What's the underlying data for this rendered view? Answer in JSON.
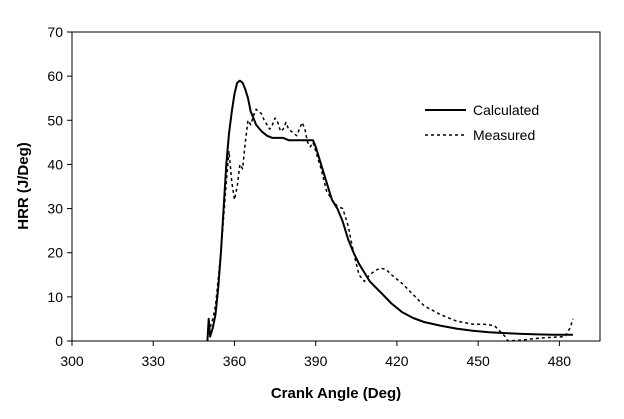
{
  "chart_data": {
    "type": "line",
    "title": "",
    "xlabel": "Crank Angle (Deg)",
    "ylabel": "HRR (J/Deg)",
    "xlim": [
      300,
      495
    ],
    "ylim": [
      0,
      70
    ],
    "x_ticks": [
      "300",
      "330",
      "360",
      "390",
      "420",
      "450",
      "480"
    ],
    "y_ticks": [
      "0",
      "10",
      "20",
      "30",
      "40",
      "50",
      "60",
      "70"
    ],
    "grid": false,
    "legend_position": "top-right",
    "series": [
      {
        "name": "Calculated",
        "style": "solid",
        "color": "#000000",
        "x": [
          350,
          350.5,
          351,
          352,
          353,
          354,
          355,
          356,
          357,
          358,
          359,
          360,
          361,
          362,
          363,
          364,
          365,
          366,
          368,
          370,
          372,
          374,
          376,
          378,
          380,
          382,
          384,
          386,
          388,
          389,
          390,
          392,
          394,
          396,
          398,
          400,
          402,
          404,
          406,
          408,
          410,
          414,
          418,
          422,
          426,
          430,
          436,
          442,
          448,
          454,
          460,
          466,
          472,
          478,
          484,
          485
        ],
        "y": [
          0,
          5,
          1,
          3,
          6,
          12,
          20,
          30,
          40,
          47,
          52,
          56,
          58.5,
          59,
          58.5,
          57,
          55,
          52,
          49,
          47.5,
          46.5,
          46,
          46,
          46,
          45.5,
          45.5,
          45.5,
          45.5,
          45.5,
          45.5,
          44,
          40,
          36,
          32,
          30,
          27,
          23,
          20,
          17.5,
          15.5,
          13.5,
          11,
          8.5,
          6.5,
          5.2,
          4.3,
          3.5,
          2.8,
          2.3,
          2.0,
          1.8,
          1.6,
          1.5,
          1.4,
          1.4,
          1.4
        ]
      },
      {
        "name": "Measured",
        "style": "dashed",
        "color": "#000000",
        "x": [
          350,
          351,
          352,
          353,
          354,
          355,
          356,
          357,
          358,
          359,
          360,
          361,
          362,
          363,
          364,
          365,
          366,
          367,
          368,
          369,
          370,
          371,
          372,
          373,
          374,
          375,
          376,
          377,
          378,
          379,
          380,
          381,
          382,
          383,
          384,
          385,
          386,
          387,
          388,
          389,
          390,
          392,
          394,
          396,
          398,
          400,
          402,
          404,
          406,
          408,
          410,
          412,
          414,
          416,
          418,
          422,
          426,
          430,
          436,
          442,
          448,
          452,
          456,
          460,
          461,
          466,
          470,
          476,
          482,
          484,
          485
        ],
        "y": [
          2,
          3,
          5,
          8,
          14,
          20,
          28,
          36,
          43,
          36,
          32,
          35,
          40,
          39,
          45,
          50,
          49,
          51,
          52.5,
          52,
          51.5,
          50,
          49,
          48,
          49,
          50.5,
          49.5,
          47.5,
          48,
          49.5,
          48,
          47.5,
          47,
          46.5,
          48,
          49.5,
          48,
          45,
          44,
          45,
          43,
          39,
          34,
          32,
          30.5,
          30,
          26,
          20,
          15,
          13.5,
          15,
          16,
          16.5,
          16.2,
          15,
          13,
          10.5,
          8,
          6,
          4.5,
          3.8,
          3.8,
          3.5,
          1,
          -0.5,
          0.2,
          0.5,
          0.8,
          1.0,
          3,
          5
        ]
      }
    ]
  }
}
